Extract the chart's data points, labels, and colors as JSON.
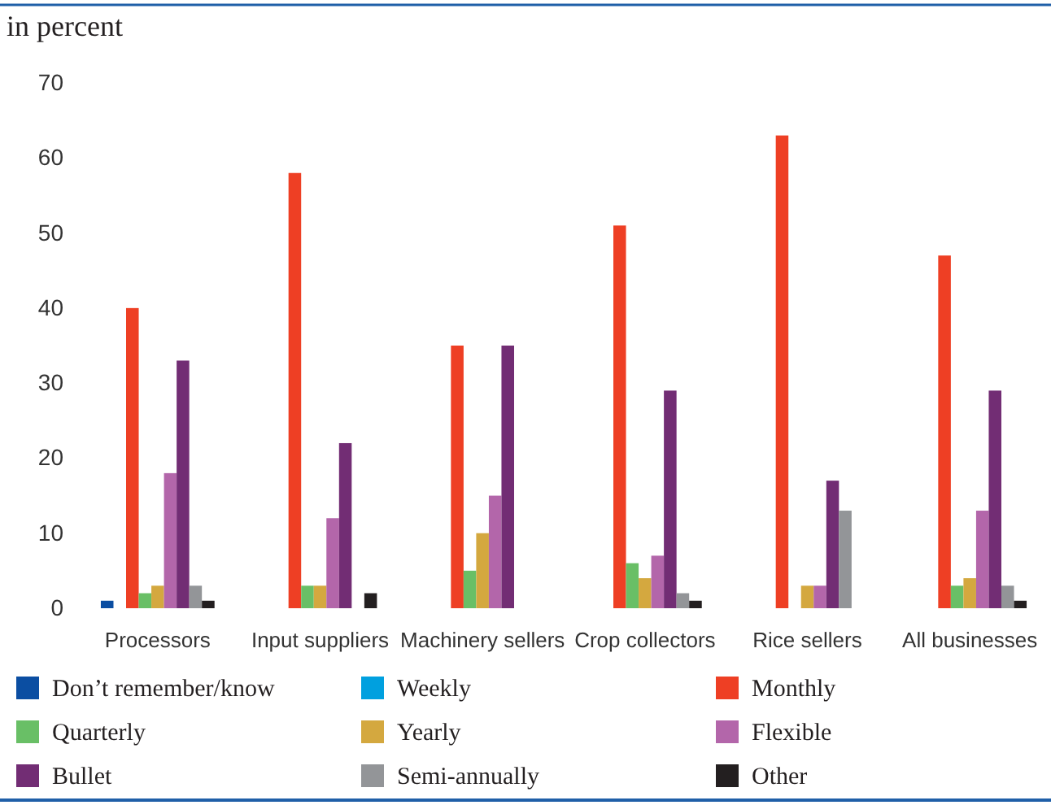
{
  "chart_data": {
    "type": "bar",
    "ylabel": "in percent",
    "categories": [
      "Processors",
      "Input suppliers",
      "Machinery sellers",
      "Crop collectors",
      "Rice sellers",
      "All businesses"
    ],
    "ylim": [
      0,
      70
    ],
    "yticks": [
      0,
      10,
      20,
      30,
      40,
      50,
      60,
      70
    ],
    "grid": false,
    "legend": "bottom",
    "series": [
      {
        "name": "Don’t remember/know",
        "color": "#0b4ea2",
        "values": [
          1,
          null,
          null,
          null,
          null,
          null
        ]
      },
      {
        "name": "Weekly",
        "color": "#00a0df",
        "values": [
          null,
          null,
          null,
          null,
          null,
          null
        ]
      },
      {
        "name": "Monthly",
        "color": "#ee3f24",
        "values": [
          40,
          58,
          35,
          51,
          63,
          47
        ]
      },
      {
        "name": "Quarterly",
        "color": "#69bf66",
        "values": [
          2,
          3,
          5,
          6,
          null,
          3
        ]
      },
      {
        "name": "Yearly",
        "color": "#d4a83f",
        "values": [
          3,
          3,
          10,
          4,
          3,
          4
        ]
      },
      {
        "name": "Flexible",
        "color": "#b366aa",
        "values": [
          18,
          12,
          15,
          7,
          3,
          13
        ]
      },
      {
        "name": "Bullet",
        "color": "#722d74",
        "values": [
          33,
          22,
          35,
          29,
          17,
          29
        ]
      },
      {
        "name": "Semi-annually",
        "color": "#939598",
        "values": [
          3,
          null,
          null,
          2,
          13,
          3
        ]
      },
      {
        "name": "Other",
        "color": "#231f20",
        "values": [
          1,
          2,
          null,
          1,
          null,
          1
        ]
      }
    ]
  }
}
